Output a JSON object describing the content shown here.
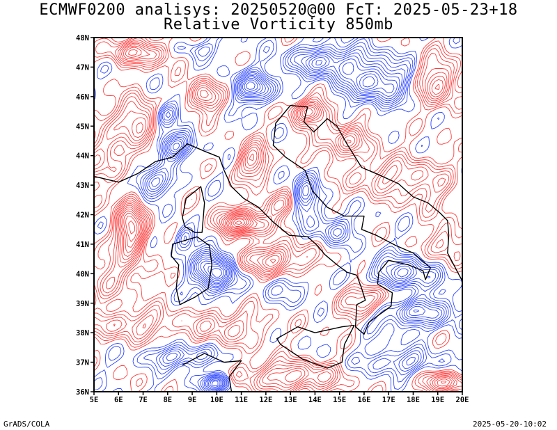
{
  "title": {
    "line1": "ECMWF0200 analisys: 20250520@00 FcT: 2025-05-23+18",
    "line2": "Relative Vorticity 850mb"
  },
  "footer": {
    "left": "GrADS/COLA",
    "right": "2025-05-20-10:02"
  },
  "map": {
    "lon_range": [
      5,
      20
    ],
    "lat_range": [
      36,
      48
    ],
    "lon_labels": [
      "5E",
      "6E",
      "7E",
      "8E",
      "9E",
      "10E",
      "11E",
      "12E",
      "13E",
      "14E",
      "15E",
      "16E",
      "17E",
      "18E",
      "19E",
      "20E"
    ],
    "lat_labels": [
      "36N",
      "37N",
      "38N",
      "39N",
      "40N",
      "41N",
      "42N",
      "43N",
      "44N",
      "45N",
      "46N",
      "47N",
      "48N"
    ],
    "colors": {
      "positive_contour": "#ff3a3a",
      "negative_contour": "#2a44ff",
      "coastline": "#000000",
      "border": "#000000"
    }
  }
}
